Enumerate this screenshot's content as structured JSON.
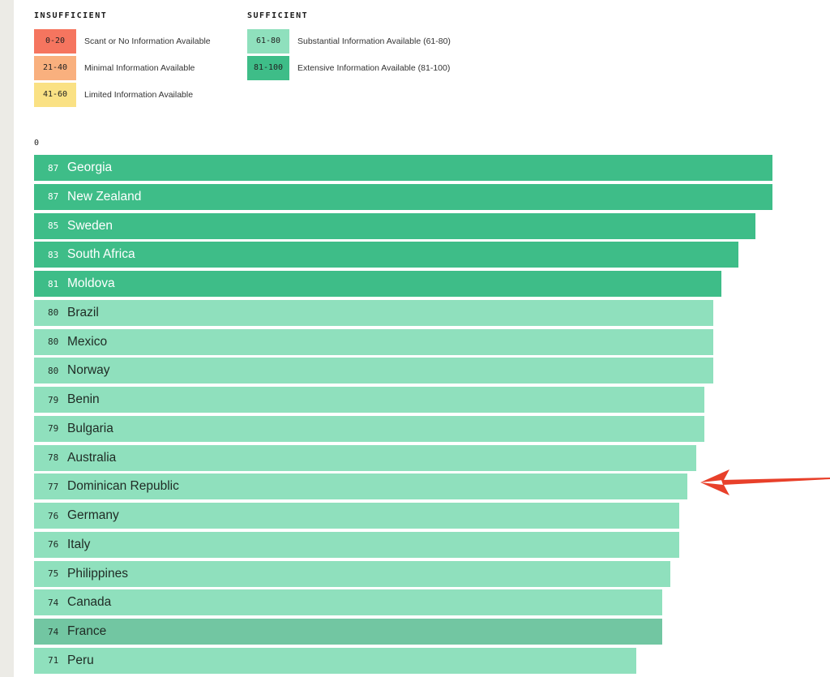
{
  "legend": {
    "insufficient": {
      "heading": "INSUFFICIENT",
      "items": [
        {
          "range": "0-20",
          "label": "Scant or No Information Available",
          "color": "#f5755f"
        },
        {
          "range": "21-40",
          "label": "Minimal Information Available",
          "color": "#f9b07e"
        },
        {
          "range": "41-60",
          "label": "Limited Information Available",
          "color": "#fae184"
        }
      ]
    },
    "sufficient": {
      "heading": "SUFFICIENT",
      "items": [
        {
          "range": "61-80",
          "label": "Substantial Information Available (61-80)",
          "color": "#8fe0bd"
        },
        {
          "range": "81-100",
          "label": "Extensive Information Available (81-100)",
          "color": "#3ebd88"
        }
      ]
    }
  },
  "axis_zero": "0",
  "chart_data": {
    "type": "bar",
    "orientation": "horizontal",
    "xlim": [
      0,
      100
    ],
    "categories": [
      "Georgia",
      "New Zealand",
      "Sweden",
      "South Africa",
      "Moldova",
      "Brazil",
      "Mexico",
      "Norway",
      "Benin",
      "Bulgaria",
      "Australia",
      "Dominican Republic",
      "Germany",
      "Italy",
      "Philippines",
      "Canada",
      "France",
      "Peru"
    ],
    "values": [
      87,
      87,
      85,
      83,
      81,
      80,
      80,
      80,
      79,
      79,
      78,
      77,
      76,
      76,
      75,
      74,
      74,
      71
    ],
    "colors": {
      "extensive": "#3ebd88",
      "substantial": "#8fe0bd",
      "highlighted": "#72c6a2"
    },
    "highlighted_category": "France",
    "annotation": {
      "type": "arrow",
      "target": "Dominican Republic",
      "color": "#e8402a"
    }
  }
}
